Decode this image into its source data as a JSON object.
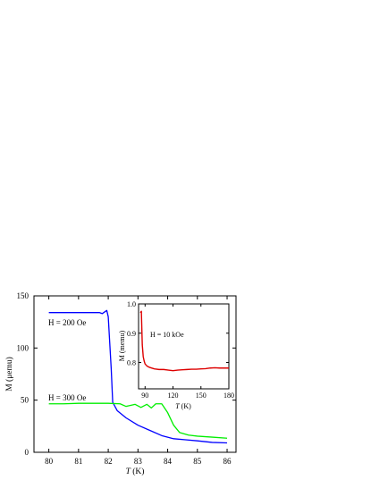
{
  "chart_data": [
    {
      "type": "line",
      "xlabel_italic": "T",
      "xlabel_unit": " (K)",
      "ylabel": "M (μemu)",
      "xlim": [
        79.5,
        86.3
      ],
      "ylim": [
        0,
        150
      ],
      "xticks": [
        80,
        81,
        82,
        83,
        84,
        85,
        86
      ],
      "yticks": [
        0,
        50,
        100,
        150
      ],
      "series": [
        {
          "name": "H = 200 Oe",
          "color": "#0000ff",
          "x": [
            80.0,
            80.5,
            81.0,
            81.5,
            81.7,
            81.8,
            81.95,
            82.0,
            82.1,
            82.15,
            82.3,
            82.6,
            83.0,
            83.4,
            83.8,
            84.2,
            84.6,
            85.0,
            85.5,
            86.0
          ],
          "y": [
            134,
            134,
            134,
            134,
            134,
            133,
            136,
            130,
            80,
            48,
            40,
            33,
            26,
            21,
            16,
            13,
            12,
            11,
            9.5,
            9
          ]
        },
        {
          "name": "H = 300 Oe",
          "color": "#00ee00",
          "x": [
            80.0,
            80.5,
            81.0,
            81.5,
            82.0,
            82.4,
            82.6,
            82.9,
            83.1,
            83.3,
            83.45,
            83.6,
            83.8,
            84.0,
            84.2,
            84.4,
            84.7,
            85.0,
            85.5,
            86.0
          ],
          "y": [
            46.5,
            46.5,
            47,
            47,
            47,
            46.5,
            44,
            46,
            43,
            46,
            42.5,
            46.5,
            46.5,
            38,
            26,
            19,
            16.5,
            15.5,
            14.5,
            13.5
          ]
        }
      ],
      "annotations": [
        "H = 200 Oe",
        "H = 300 Oe"
      ]
    },
    {
      "type": "line",
      "xlabel_italic": "T",
      "xlabel_unit": " (K)",
      "ylabel": "M (memu)",
      "xlim": [
        83,
        180
      ],
      "ylim": [
        0.71,
        1.0
      ],
      "xticks": [
        90,
        120,
        150,
        180
      ],
      "yticks": [
        0.8,
        0.9,
        1.0
      ],
      "ytick_labels": [
        "0.8",
        "0.9",
        "1.0"
      ],
      "series": [
        {
          "name": "H = 10 kOe",
          "color": "#dd0000",
          "x": [
            85,
            86,
            87,
            88,
            89,
            90,
            92,
            95,
            100,
            105,
            110,
            115,
            120,
            125,
            130,
            135,
            140,
            145,
            150,
            155,
            160,
            165,
            170,
            175,
            180
          ],
          "y": [
            0.97,
            0.975,
            0.86,
            0.82,
            0.805,
            0.795,
            0.788,
            0.783,
            0.778,
            0.776,
            0.776,
            0.774,
            0.772,
            0.774,
            0.775,
            0.776,
            0.777,
            0.777,
            0.778,
            0.779,
            0.781,
            0.782,
            0.781,
            0.781,
            0.781
          ]
        }
      ],
      "annotations": [
        "H = 10 kOe"
      ]
    }
  ]
}
